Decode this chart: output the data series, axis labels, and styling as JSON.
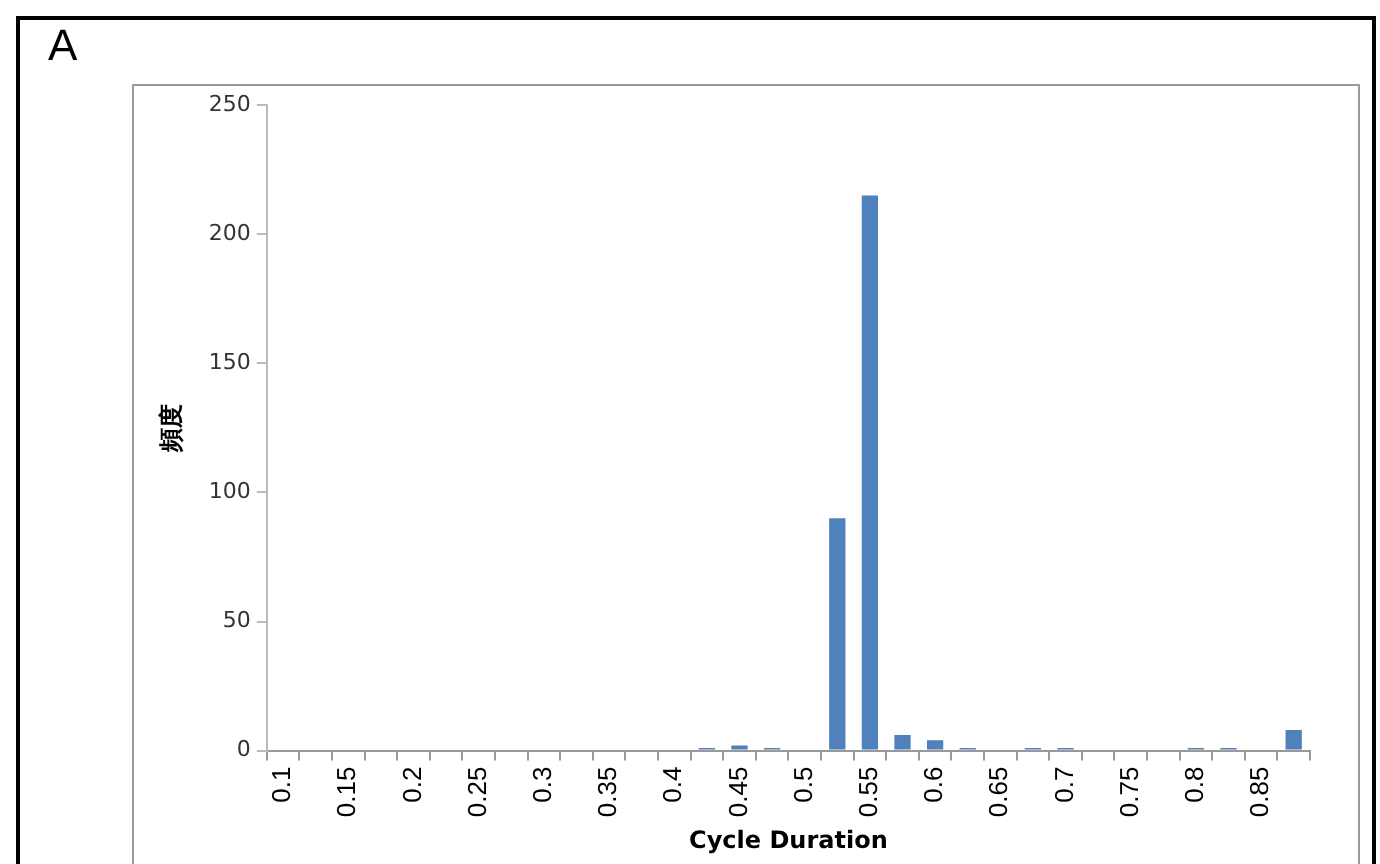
{
  "chart_data": {
    "type": "bar",
    "title": "A",
    "xlabel": "Cycle Duration",
    "ylabel": "頻度",
    "categories": [
      "0.1",
      null,
      "0.15",
      null,
      "0.2",
      null,
      "0.25",
      null,
      "0.3",
      null,
      "0.35",
      null,
      "0.4",
      null,
      "0.45",
      null,
      "0.5",
      null,
      "0.55",
      null,
      "0.6",
      null,
      "0.65",
      null,
      "0.7",
      null,
      "0.75",
      null,
      "0.8",
      null,
      "0.85",
      null
    ],
    "values": [
      0,
      0,
      0,
      0,
      0,
      0,
      0,
      0,
      0,
      0,
      0,
      0,
      0,
      1,
      2,
      1,
      0,
      90,
      215,
      6,
      4,
      1,
      0,
      1,
      1,
      0,
      0,
      0,
      1,
      1,
      0,
      8
    ],
    "color": "#4f81bd",
    "ylim": [
      0,
      250
    ],
    "yticks": [
      0,
      50,
      100,
      150,
      200,
      250
    ],
    "grid": false,
    "legend": false
  }
}
